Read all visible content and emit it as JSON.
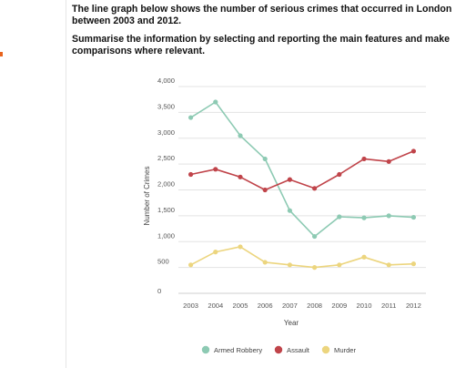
{
  "prompt": {
    "line1": "The line graph below shows the number of serious crimes that occurred in London between 2003 and 2012.",
    "line2": "Summarise the information by selecting and reporting the main features and make comparisons where relevant."
  },
  "chart_data": {
    "type": "line",
    "title": "",
    "xlabel": "Year",
    "ylabel": "Number of Crimes",
    "categories": [
      "2003",
      "2004",
      "2005",
      "2006",
      "2007",
      "2008",
      "2009",
      "2010",
      "2011",
      "2012"
    ],
    "ylim": [
      0,
      4000
    ],
    "yticks": [
      "0",
      "500",
      "1,000",
      "1,500",
      "2,000",
      "2,500",
      "3,000",
      "3,500",
      "4,000"
    ],
    "grid": true,
    "legend_position": "bottom",
    "series": [
      {
        "name": "Armed Robbery",
        "color": "#8dcab3",
        "values": [
          3400,
          3700,
          3050,
          2600,
          1600,
          1100,
          1480,
          1460,
          1500,
          1470
        ]
      },
      {
        "name": "Assault",
        "color": "#c0444a",
        "values": [
          2300,
          2400,
          2250,
          2000,
          2200,
          2030,
          2300,
          2600,
          2550,
          2750
        ]
      },
      {
        "name": "Murder",
        "color": "#ecd57e",
        "values": [
          550,
          800,
          900,
          600,
          550,
          500,
          550,
          700,
          550,
          570
        ]
      }
    ]
  }
}
